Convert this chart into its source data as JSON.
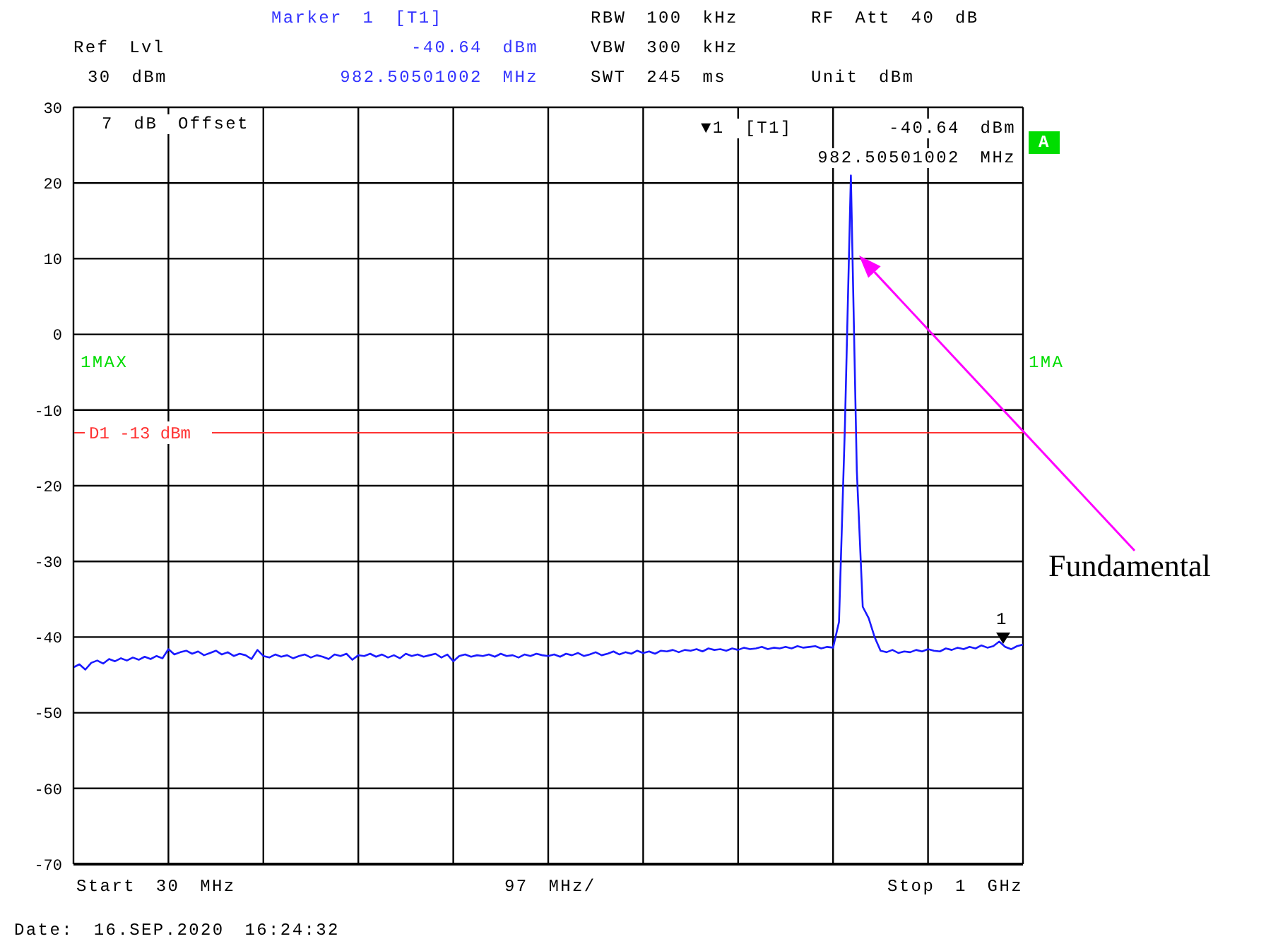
{
  "chart_data": {
    "type": "line",
    "categories": [
      null,
      null,
      null,
      null,
      null,
      null,
      null,
      null,
      null,
      null,
      null,
      null,
      null,
      null,
      null,
      null,
      null,
      null,
      null,
      null,
      null,
      null,
      null,
      null,
      null,
      null,
      null,
      null,
      null,
      null,
      null,
      null,
      null,
      null,
      null,
      null,
      null,
      null,
      null,
      null,
      null,
      null,
      null,
      null,
      null,
      null,
      null,
      null,
      null,
      null,
      null,
      null,
      null,
      null,
      null,
      null,
      null,
      null,
      null,
      null,
      null,
      null,
      null,
      null,
      null,
      null,
      null,
      null,
      null,
      null,
      null,
      null,
      null,
      null,
      null,
      null,
      null,
      null,
      null,
      null,
      null,
      null,
      null,
      null,
      null,
      null,
      null,
      null,
      null,
      null,
      null,
      null,
      null,
      null,
      null,
      null,
      null,
      null,
      null,
      null,
      null,
      null,
      null,
      null,
      null,
      null,
      null,
      null,
      null,
      null,
      null,
      null,
      null,
      null,
      null,
      null,
      null,
      null,
      null,
      null,
      null,
      null,
      null,
      null,
      null,
      null,
      null,
      null,
      null,
      null,
      null,
      null,
      null,
      null,
      null,
      null,
      null,
      null,
      null,
      null,
      null,
      null,
      null,
      null,
      null,
      null,
      null,
      null,
      null,
      null,
      null,
      null,
      null,
      null,
      null,
      null,
      null,
      null,
      null,
      null,
      null
    ],
    "ylim": [
      -70,
      30
    ],
    "yticks": [
      -70,
      -60,
      -50,
      -40,
      -30,
      -20,
      -10,
      0,
      10,
      20,
      30
    ],
    "grid": true,
    "series": [
      {
        "color": "#1a1aff",
        "values": [
          -44.0,
          -43.6,
          -44.3,
          -43.4,
          -43.1,
          -43.5,
          -42.9,
          -43.2,
          -42.8,
          -43.1,
          -42.7,
          -43.0,
          -42.6,
          -42.9,
          -42.5,
          -42.8,
          -41.6,
          -42.3,
          -42.0,
          -41.8,
          -42.2,
          -41.9,
          -42.4,
          -42.1,
          -41.8,
          -42.3,
          -42.0,
          -42.5,
          -42.2,
          -42.4,
          -42.9,
          -41.7,
          -42.5,
          -42.7,
          -42.3,
          -42.6,
          -42.4,
          -42.8,
          -42.5,
          -42.3,
          -42.7,
          -42.4,
          -42.6,
          -42.9,
          -42.3,
          -42.5,
          -42.2,
          -43.0,
          -42.4,
          -42.5,
          -42.2,
          -42.6,
          -42.3,
          -42.7,
          -42.4,
          -42.8,
          -42.2,
          -42.5,
          -42.3,
          -42.6,
          -42.4,
          -42.2,
          -42.7,
          -42.3,
          -43.2,
          -42.5,
          -42.3,
          -42.6,
          -42.4,
          -42.5,
          -42.3,
          -42.6,
          -42.2,
          -42.5,
          -42.4,
          -42.7,
          -42.3,
          -42.5,
          -42.2,
          -42.4,
          -42.5,
          -42.3,
          -42.6,
          -42.2,
          -42.4,
          -42.1,
          -42.5,
          -42.3,
          -42.0,
          -42.4,
          -42.2,
          -41.9,
          -42.3,
          -42.0,
          -42.2,
          -41.8,
          -42.1,
          -41.9,
          -42.2,
          -41.8,
          -41.9,
          -41.7,
          -42.0,
          -41.7,
          -41.8,
          -41.6,
          -41.9,
          -41.5,
          -41.7,
          -41.6,
          -41.8,
          -41.5,
          -41.7,
          -41.4,
          -41.6,
          -41.5,
          -41.3,
          -41.6,
          -41.4,
          -41.5,
          -41.3,
          -41.5,
          -41.2,
          -41.4,
          -41.3,
          -41.2,
          -41.5,
          -41.3,
          -41.4,
          -38,
          -12,
          21,
          -18,
          -36,
          -37.5,
          -40,
          -41.8,
          -42.0,
          -41.7,
          -42.1,
          -41.9,
          -42.0,
          -41.7,
          -41.9,
          -41.6,
          -41.8,
          -41.9,
          -41.5,
          -41.7,
          -41.4,
          -41.6,
          -41.3,
          -41.5,
          -41.1,
          -41.4,
          -41.2,
          -40.6,
          -41.3,
          -41.6,
          -41.2,
          -41.0
        ]
      }
    ],
    "ref_lines": [
      {
        "axis": "y",
        "value": -13,
        "label": "D1 -13 dBm",
        "color": "#ff3333"
      }
    ],
    "annotations": [
      "Marker 1 [T1]",
      "Ref Lvl",
      "-40.64 dBm",
      "RBW 100 kHz",
      "RF Att 40 dB",
      "VBW 300 kHz",
      "30 dBm",
      "982.50501002 MHz",
      "SWT 245 ms",
      "Unit dBm",
      "7 dB Offset",
      "▼1 [T1]",
      "-40.64 dBm",
      "982.50501002 MHz",
      "A",
      "1MAX",
      "1MA",
      "Fundamental",
      "1",
      "Date: 16.SEP.2020 16:24:32",
      "Start 30 MHz",
      "97 MHz/",
      "Stop 1 GHz"
    ]
  }
}
